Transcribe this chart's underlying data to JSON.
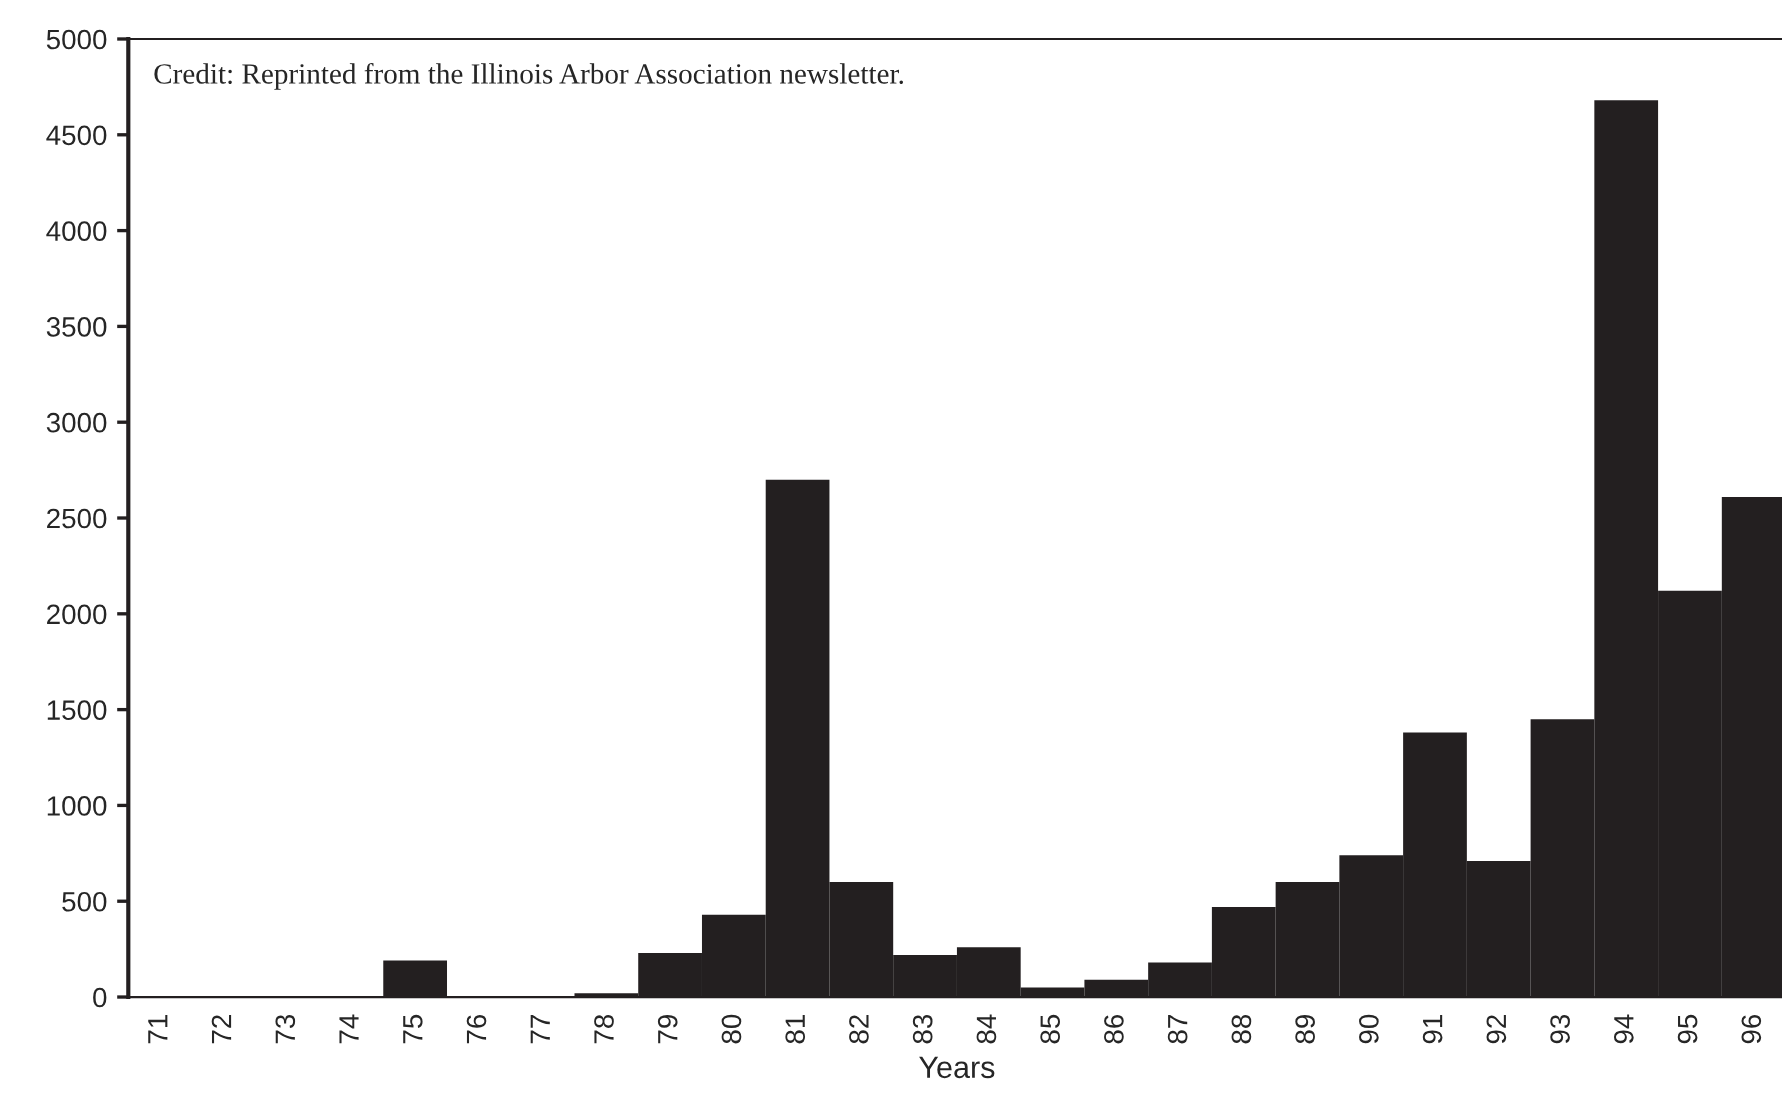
{
  "chart_data": {
    "type": "bar",
    "xlabel": "Years",
    "categories": [
      "71",
      "72",
      "73",
      "74",
      "75",
      "76",
      "77",
      "78",
      "79",
      "80",
      "81",
      "82",
      "83",
      "84",
      "85",
      "86",
      "87",
      "88",
      "89",
      "90",
      "91",
      "92",
      "93",
      "94",
      "95",
      "96"
    ],
    "values": [
      0,
      0,
      0,
      0,
      190,
      0,
      0,
      20,
      230,
      430,
      2700,
      600,
      220,
      260,
      50,
      90,
      180,
      470,
      600,
      740,
      1380,
      710,
      1450,
      4680,
      2120,
      2610
    ],
    "color": "#231f20",
    "ylim": [
      0,
      5000
    ],
    "yticks": [
      0,
      500,
      1000,
      1500,
      2000,
      2500,
      3000,
      3500,
      4000,
      4500,
      5000
    ],
    "grid": false,
    "annotations": [
      "Credit: Reprinted from the Illinois Arbor Association newsletter."
    ]
  }
}
